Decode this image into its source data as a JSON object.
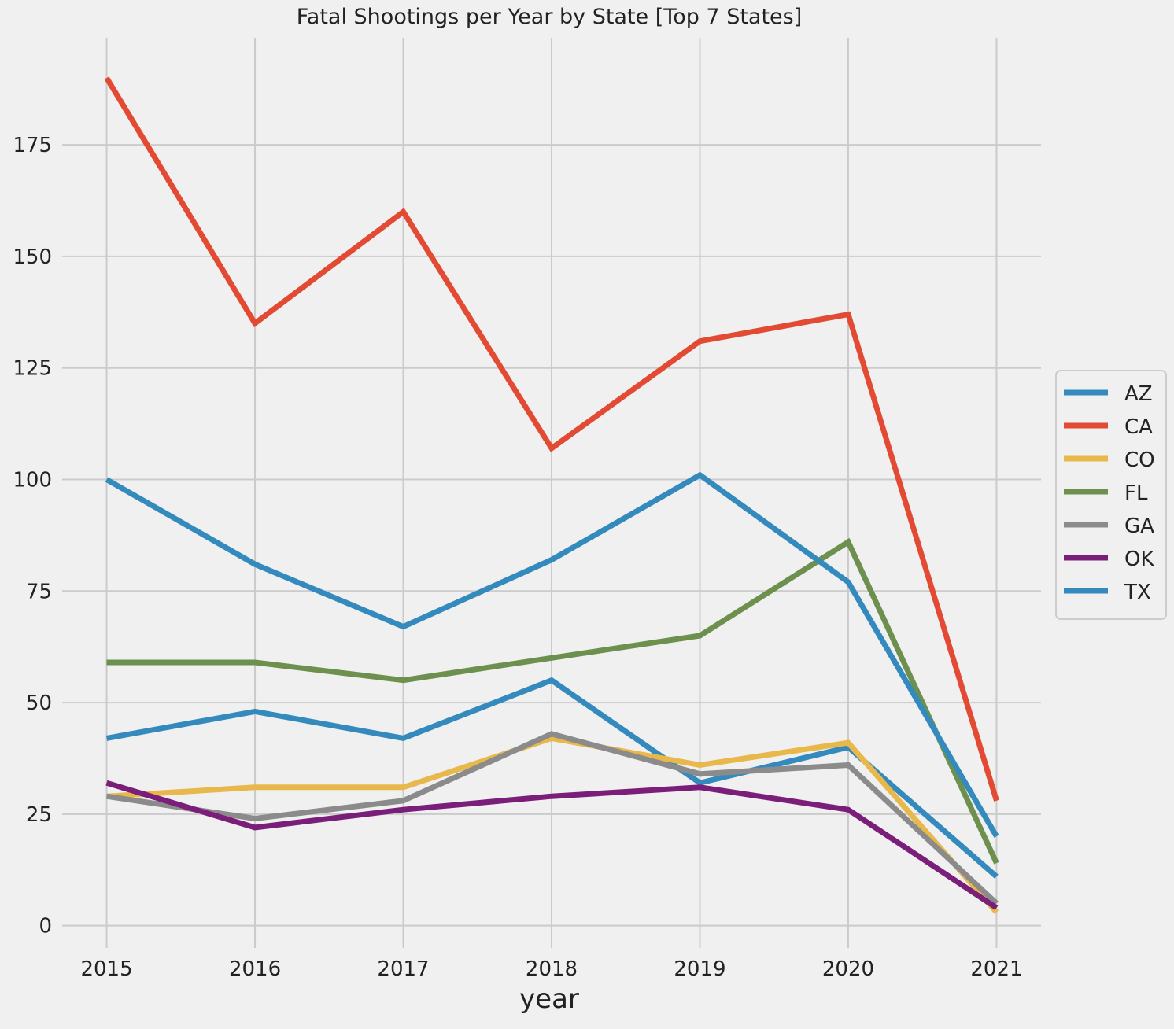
{
  "chart_data": {
    "type": "line",
    "title": "Fatal Shootings per Year by State [Top 7 States]",
    "xlabel": "year",
    "ylabel": "",
    "x": [
      2015,
      2016,
      2017,
      2018,
      2019,
      2020,
      2021
    ],
    "xticks": [
      "2015",
      "2016",
      "2017",
      "2018",
      "2019",
      "2020",
      "2021"
    ],
    "yticks": [
      0,
      25,
      50,
      75,
      100,
      125,
      150,
      175
    ],
    "ylim": [
      -5,
      199
    ],
    "xlim": [
      2014.7,
      2021.3
    ],
    "grid": true,
    "legend_position": "right",
    "series": [
      {
        "name": "AZ",
        "color": "#348ABD",
        "values": [
          42,
          48,
          42,
          55,
          32,
          40,
          11
        ]
      },
      {
        "name": "CA",
        "color": "#E24A33",
        "values": [
          190,
          135,
          160,
          107,
          131,
          137,
          28
        ]
      },
      {
        "name": "CO",
        "color": "#E8B84A",
        "values": [
          29,
          31,
          31,
          42,
          36,
          41,
          3
        ]
      },
      {
        "name": "FL",
        "color": "#6D904F",
        "values": [
          59,
          59,
          55,
          60,
          65,
          86,
          14
        ]
      },
      {
        "name": "GA",
        "color": "#8B8B8B",
        "values": [
          29,
          24,
          28,
          43,
          34,
          36,
          5
        ]
      },
      {
        "name": "OK",
        "color": "#7A1E7A",
        "values": [
          32,
          22,
          26,
          29,
          31,
          26,
          4
        ]
      },
      {
        "name": "TX",
        "color": "#348ABD",
        "values": [
          100,
          81,
          67,
          82,
          101,
          77,
          20
        ]
      }
    ]
  }
}
